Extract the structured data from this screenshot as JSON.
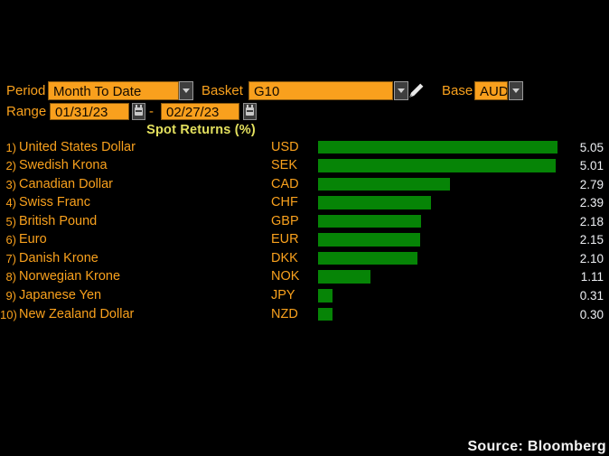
{
  "controls": {
    "period_label": "Period",
    "period_value": "Month To Date",
    "basket_label": "Basket",
    "basket_value": "G10",
    "base_label": "Base",
    "base_value": "AUD",
    "range_label": "Range",
    "range_start": "01/31/23",
    "range_separator": "-",
    "range_end": "02/27/23"
  },
  "title": "Spot Returns (%)",
  "source": "Source: Bloomberg",
  "colors": {
    "accent_orange": "#f9a01d",
    "bar_green": "#068406",
    "title_yellow": "#e3e05e",
    "value_white": "#eef0f4",
    "background": "#000000"
  },
  "icons": [
    "dropdown-arrow-icon",
    "pencil-icon",
    "calendar-icon"
  ],
  "chart_data": {
    "type": "bar",
    "orientation": "horizontal",
    "title": "Spot Returns (%)",
    "xlim": [
      0,
      5.05
    ],
    "grid": false,
    "bar_color": "#068406",
    "rows": [
      {
        "rank": "1)",
        "name": "United States Dollar",
        "ticker": "USD",
        "value": 5.05,
        "value_label": "5.05"
      },
      {
        "rank": "2)",
        "name": "Swedish Krona",
        "ticker": "SEK",
        "value": 5.01,
        "value_label": "5.01"
      },
      {
        "rank": "3)",
        "name": "Canadian Dollar",
        "ticker": "CAD",
        "value": 2.79,
        "value_label": "2.79"
      },
      {
        "rank": "4)",
        "name": "Swiss Franc",
        "ticker": "CHF",
        "value": 2.39,
        "value_label": "2.39"
      },
      {
        "rank": "5)",
        "name": "British Pound",
        "ticker": "GBP",
        "value": 2.18,
        "value_label": "2.18"
      },
      {
        "rank": "6)",
        "name": "Euro",
        "ticker": "EUR",
        "value": 2.15,
        "value_label": "2.15"
      },
      {
        "rank": "7)",
        "name": "Danish Krone",
        "ticker": "DKK",
        "value": 2.1,
        "value_label": "2.10"
      },
      {
        "rank": "8)",
        "name": "Norwegian Krone",
        "ticker": "NOK",
        "value": 1.11,
        "value_label": "1.11"
      },
      {
        "rank": "9)",
        "name": "Japanese Yen",
        "ticker": "JPY",
        "value": 0.31,
        "value_label": "0.31"
      },
      {
        "rank": "10)",
        "name": "New Zealand Dollar",
        "ticker": "NZD",
        "value": 0.3,
        "value_label": "0.30"
      }
    ]
  }
}
